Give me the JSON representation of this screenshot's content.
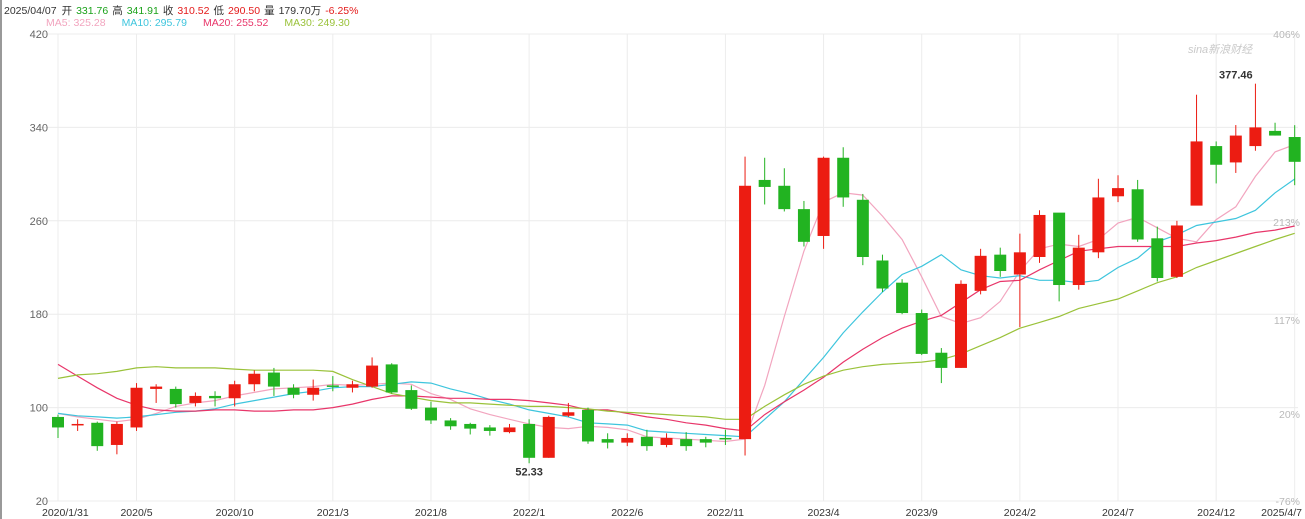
{
  "header": {
    "date": "2025/04/07",
    "open_label": "开",
    "open": "331.76",
    "high_label": "高",
    "high": "341.91",
    "close_label": "收",
    "close": "310.52",
    "low_label": "低",
    "low": "290.50",
    "volume_label": "量",
    "volume": "179.70万",
    "change": "-6.25%"
  },
  "legend": [
    {
      "label": "MA5:",
      "value": "325.28",
      "color": "#f2a5bf"
    },
    {
      "label": "MA10:",
      "value": "295.79",
      "color": "#3ec5dd"
    },
    {
      "label": "MA20:",
      "value": "255.52",
      "color": "#e8366a"
    },
    {
      "label": "MA30:",
      "value": "249.30",
      "color": "#9ac23a"
    }
  ],
  "watermark": "sina新浪财经",
  "colors": {
    "up": "#ec1c12",
    "down": "#22b321",
    "grid": "#ececec",
    "axis_text": "#666666"
  },
  "chart_data": {
    "type": "candlestick",
    "y_ticks": [
      "420",
      "340",
      "260",
      "180",
      "100",
      "20"
    ],
    "y_tick_values": [
      420,
      340,
      260,
      180,
      100,
      20
    ],
    "ylim": [
      20,
      420
    ],
    "pct_ticks": [
      "406%",
      "213%",
      "117%",
      "20%",
      "-76%"
    ],
    "x_tick_labels": [
      "2020/1/31",
      "2020/5",
      "2020/10",
      "2021/3",
      "2021/8",
      "2022/1",
      "2022/6",
      "2022/11",
      "2023/4",
      "2023/9",
      "2024/2",
      "2024/7",
      "2024/12",
      "2025/4/7"
    ],
    "x_tick_index": [
      0,
      4,
      9,
      14,
      19,
      24,
      29,
      34,
      39,
      44,
      49,
      54,
      59,
      63
    ],
    "annotations": [
      {
        "text": "52.33",
        "index": 24,
        "value": 52.33,
        "side": "below"
      },
      {
        "text": "377.46",
        "index": 60,
        "value": 377.46,
        "side": "above"
      }
    ],
    "candles": [
      [
        92,
        83,
        94,
        74
      ],
      [
        86,
        86,
        90,
        80
      ],
      [
        87,
        67,
        88,
        63
      ],
      [
        68,
        86,
        88,
        60
      ],
      [
        83,
        117,
        121,
        80
      ],
      [
        116,
        118,
        120,
        104
      ],
      [
        116,
        103,
        118,
        100
      ],
      [
        104,
        110,
        113,
        101
      ],
      [
        110,
        108,
        114,
        101
      ],
      [
        108,
        120,
        123,
        101
      ],
      [
        120,
        129,
        132,
        114
      ],
      [
        130,
        118,
        134,
        110
      ],
      [
        117,
        111,
        120,
        108
      ],
      [
        111,
        117,
        124,
        106
      ],
      [
        119,
        118,
        127,
        114
      ],
      [
        117,
        120,
        123,
        113
      ],
      [
        118,
        136,
        143,
        117
      ],
      [
        137,
        113,
        138,
        112
      ],
      [
        115,
        99,
        119,
        98
      ],
      [
        100,
        89,
        105,
        86
      ],
      [
        89,
        84,
        91,
        81
      ],
      [
        86,
        82,
        87,
        77
      ],
      [
        83,
        80,
        85,
        76
      ],
      [
        79,
        83,
        86,
        78
      ],
      [
        86,
        57,
        90,
        52.33
      ],
      [
        57,
        92,
        93,
        57
      ],
      [
        93,
        96,
        104,
        92
      ],
      [
        98,
        71,
        100,
        69
      ],
      [
        73,
        70,
        78,
        65
      ],
      [
        70,
        74,
        78,
        67
      ],
      [
        75,
        67,
        81,
        63
      ],
      [
        68,
        74,
        78,
        66
      ],
      [
        73,
        67,
        79,
        63
      ],
      [
        73,
        70,
        75,
        66
      ],
      [
        74,
        73,
        81,
        68
      ],
      [
        73,
        290,
        315,
        59
      ],
      [
        295,
        289,
        314,
        274
      ],
      [
        290,
        270,
        305,
        268
      ],
      [
        270,
        242,
        277,
        238
      ],
      [
        247,
        314,
        315,
        236
      ],
      [
        314,
        280,
        323,
        272
      ],
      [
        278,
        229,
        283,
        222
      ],
      [
        226,
        202,
        231,
        199
      ],
      [
        207,
        181,
        210,
        180
      ],
      [
        181,
        146,
        184,
        145
      ],
      [
        147,
        134,
        151,
        121
      ],
      [
        134,
        206,
        209,
        134
      ],
      [
        200,
        230,
        236,
        197
      ],
      [
        231,
        217,
        237,
        212
      ],
      [
        214,
        233,
        249,
        169
      ],
      [
        229,
        265,
        269,
        224
      ],
      [
        267,
        205,
        266,
        191
      ],
      [
        205,
        237,
        248,
        201
      ],
      [
        233,
        280,
        296,
        228
      ],
      [
        281,
        288,
        299,
        276
      ],
      [
        287,
        244,
        295,
        242
      ],
      [
        245,
        211,
        255,
        208
      ],
      [
        212,
        256,
        260,
        211
      ],
      [
        273,
        328,
        368,
        275
      ],
      [
        324,
        308,
        328,
        292
      ],
      [
        310,
        333,
        342,
        301
      ],
      [
        324,
        340,
        377.46,
        320
      ],
      [
        337,
        333,
        344,
        333
      ],
      [
        331.76,
        310.52,
        341.91,
        290.5
      ]
    ],
    "series": [
      {
        "name": "MA5",
        "values": [
          95,
          92,
          90,
          88,
          90,
          95,
          101,
          104,
          106,
          110,
          113,
          116,
          117,
          118,
          120,
          119,
          120,
          121,
          120,
          112,
          107,
          99,
          94,
          90,
          86,
          83,
          82,
          84,
          83,
          81,
          75,
          74,
          73,
          72,
          71,
          73,
          119,
          178,
          234,
          276,
          284,
          282,
          264,
          244,
          212,
          178,
          172,
          177,
          191,
          217,
          236,
          240,
          238,
          244,
          258,
          263,
          254,
          245,
          242,
          261,
          272,
          298,
          319,
          325.28
        ]
      },
      {
        "name": "MA10",
        "values": [
          95,
          93,
          92,
          91,
          92,
          94,
          96,
          97,
          99,
          103,
          106,
          109,
          112,
          114,
          117,
          118,
          118,
          120,
          122,
          121,
          116,
          112,
          107,
          103,
          98,
          95,
          92,
          87,
          86,
          85,
          80,
          79,
          78,
          77,
          76,
          75,
          90,
          105,
          124,
          143,
          164,
          182,
          199,
          214,
          221,
          231,
          218,
          213,
          211,
          213,
          209,
          209,
          207,
          209,
          220,
          228,
          242,
          248,
          256,
          259,
          262,
          269,
          284,
          295.79
        ]
      },
      {
        "name": "MA20",
        "values": [
          137,
          127,
          117,
          108,
          102,
          98,
          97,
          97,
          98,
          98,
          97,
          97,
          98,
          98,
          100,
          103,
          107,
          110,
          110,
          109,
          108,
          108,
          107,
          107,
          106,
          104,
          102,
          98,
          98,
          95,
          92,
          90,
          87,
          85,
          82,
          80,
          94,
          105,
          115,
          126,
          139,
          150,
          160,
          168,
          174,
          179,
          190,
          201,
          208,
          209,
          218,
          226,
          234,
          236,
          238,
          238,
          238,
          238,
          241,
          243,
          246,
          250,
          252,
          255.52
        ]
      },
      {
        "name": "MA30",
        "values": [
          125,
          128,
          129,
          131,
          134,
          135,
          134,
          134,
          134,
          133,
          132,
          132,
          132,
          132,
          131,
          124,
          118,
          112,
          109,
          106,
          104,
          104,
          103,
          102,
          101,
          101,
          100,
          99,
          97,
          96,
          95,
          94,
          93,
          92,
          90,
          90,
          101,
          111,
          120,
          127,
          132,
          135,
          137,
          138,
          139,
          141,
          146,
          153,
          160,
          168,
          173,
          178,
          185,
          189,
          193,
          200,
          207,
          212,
          220,
          226,
          232,
          238,
          244,
          249.3
        ]
      }
    ]
  }
}
